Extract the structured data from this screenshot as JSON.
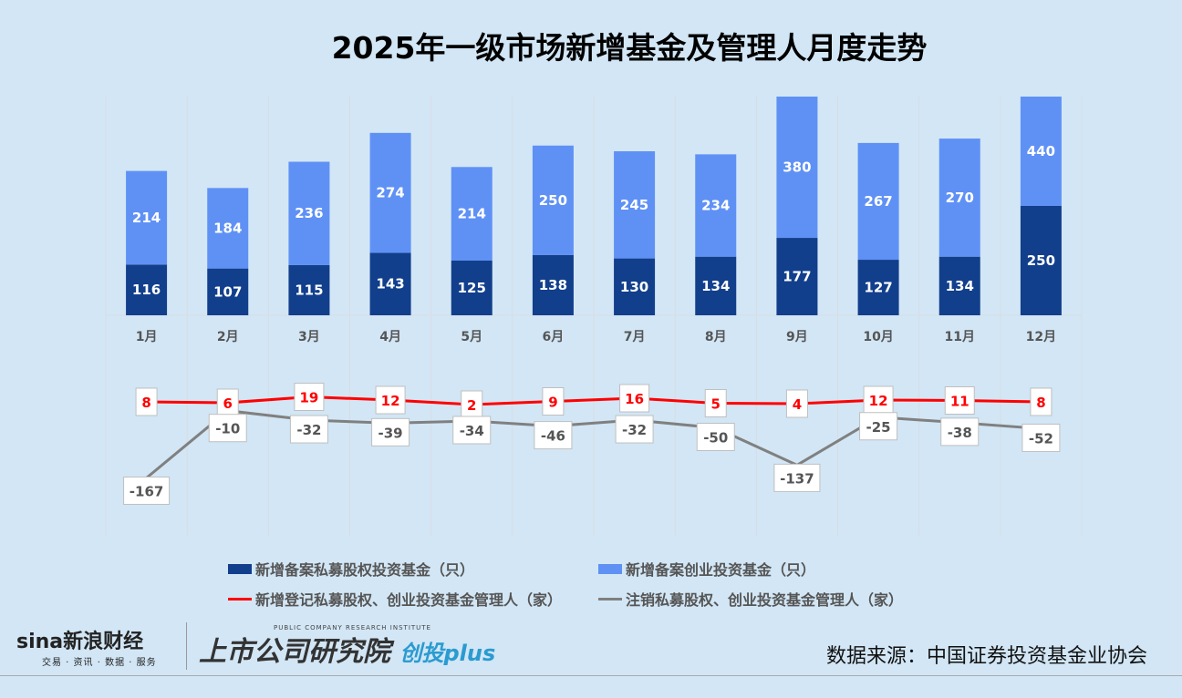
{
  "title": "2025年一级市场新增基金及管理人月度走势",
  "chart_data": {
    "type": "bar+line",
    "title": "2025年一级市场新增基金及管理人月度走势",
    "categories": [
      "1月",
      "2月",
      "3月",
      "4月",
      "5月",
      "6月",
      "7月",
      "8月",
      "9月",
      "10月",
      "11月",
      "12月"
    ],
    "bar_series": [
      {
        "name": "新增备案私募股权投资基金（只）",
        "color": "#123f8c",
        "values": [
          116,
          107,
          115,
          143,
          125,
          138,
          130,
          134,
          177,
          127,
          134,
          250
        ]
      },
      {
        "name": "新增备案创业投资基金（只）",
        "color": "#5f91f5",
        "values": [
          214,
          184,
          236,
          274,
          214,
          250,
          245,
          234,
          380,
          267,
          270,
          440
        ]
      }
    ],
    "bar_stacked": true,
    "line_series": [
      {
        "name": "新增登记私募股权、创业投资基金管理人（家）",
        "color": "#ff0000",
        "values": [
          8,
          6,
          19,
          12,
          2,
          9,
          16,
          5,
          4,
          12,
          11,
          8
        ]
      },
      {
        "name": "注销私募股权、创业投资基金管理人（家）",
        "color": "#808080",
        "values": [
          -167,
          -10,
          -32,
          -39,
          -34,
          -46,
          -32,
          -50,
          -137,
          -25,
          -38,
          -52
        ]
      }
    ],
    "grid": "vertical",
    "legend": "bottom"
  },
  "footer": {
    "source": "数据来源：中国证券投资基金业协会",
    "sina_logo": "sina新浪财经",
    "sina_tagline": "交易 · 资讯 · 数据 · 服务",
    "institute_logo": "上市公司研究院",
    "institute_en": "PUBLIC COMPANY RESEARCH INSTITUTE",
    "plus_logo": "创投plus"
  }
}
